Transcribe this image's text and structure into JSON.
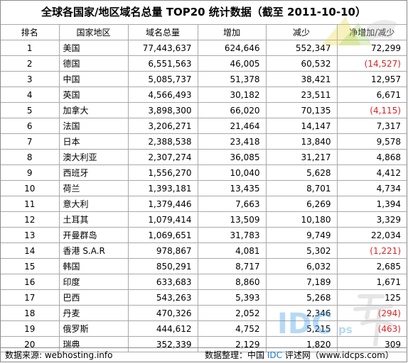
{
  "title": "全球各国家/地区域名总量 TOP20 统计数据（截至 2011-10-10）",
  "columns": [
    "排名",
    "国家地区",
    "域名总量",
    "增加",
    "减少",
    "净增加/减少"
  ],
  "rows": [
    {
      "rank": "1",
      "country": "美国",
      "total": "77,443,637",
      "increase": "624,646",
      "decrease": "552,347",
      "net": "72,299",
      "net_negative": false
    },
    {
      "rank": "2",
      "country": "德国",
      "total": "6,551,563",
      "increase": "46,005",
      "decrease": "60,532",
      "net": "(14,527)",
      "net_negative": true
    },
    {
      "rank": "3",
      "country": "中国",
      "total": "5,085,737",
      "increase": "51,378",
      "decrease": "38,421",
      "net": "12,957",
      "net_negative": false
    },
    {
      "rank": "4",
      "country": "英国",
      "total": "4,566,493",
      "increase": "30,182",
      "decrease": "23,511",
      "net": "6,671",
      "net_negative": false
    },
    {
      "rank": "5",
      "country": "加拿大",
      "total": "3,898,300",
      "increase": "66,020",
      "decrease": "70,135",
      "net": "(4,115)",
      "net_negative": true
    },
    {
      "rank": "6",
      "country": "法国",
      "total": "3,206,271",
      "increase": "21,464",
      "decrease": "14,147",
      "net": "7,317",
      "net_negative": false
    },
    {
      "rank": "7",
      "country": "日本",
      "total": "2,388,538",
      "increase": "23,418",
      "decrease": "13,840",
      "net": "9,578",
      "net_negative": false
    },
    {
      "rank": "8",
      "country": "澳大利亚",
      "total": "2,307,274",
      "increase": "36,085",
      "decrease": "31,217",
      "net": "4,868",
      "net_negative": false
    },
    {
      "rank": "9",
      "country": "西班牙",
      "total": "1,556,270",
      "increase": "10,040",
      "decrease": "5,628",
      "net": "4,412",
      "net_negative": false
    },
    {
      "rank": "10",
      "country": "荷兰",
      "total": "1,393,181",
      "increase": "13,435",
      "decrease": "8,701",
      "net": "4,734",
      "net_negative": false
    },
    {
      "rank": "11",
      "country": "意大利",
      "total": "1,379,446",
      "increase": "7,663",
      "decrease": "6,269",
      "net": "1,394",
      "net_negative": false
    },
    {
      "rank": "12",
      "country": "土耳其",
      "total": "1,079,414",
      "increase": "13,509",
      "decrease": "10,180",
      "net": "3,329",
      "net_negative": false
    },
    {
      "rank": "13",
      "country": "开曼群岛",
      "total": "1,069,651",
      "increase": "31,783",
      "decrease": "9,749",
      "net": "22,034",
      "net_negative": false
    },
    {
      "rank": "14",
      "country": "香港 S.A.R",
      "total": "978,867",
      "increase": "4,081",
      "decrease": "5,302",
      "net": "(1,221)",
      "net_negative": true
    },
    {
      "rank": "15",
      "country": "韩国",
      "total": "850,291",
      "increase": "8,717",
      "decrease": "6,032",
      "net": "2,685",
      "net_negative": false
    },
    {
      "rank": "16",
      "country": "印度",
      "total": "633,683",
      "increase": "8,860",
      "decrease": "7,189",
      "net": "1,671",
      "net_negative": false
    },
    {
      "rank": "17",
      "country": "巴西",
      "total": "543,263",
      "increase": "5,393",
      "decrease": "5,268",
      "net": "125",
      "net_negative": false
    },
    {
      "rank": "18",
      "country": "丹麦",
      "total": "470,326",
      "increase": "2,052",
      "decrease": "2,346",
      "net": "(294)",
      "net_negative": true
    },
    {
      "rank": "19",
      "country": "俄罗斯",
      "total": "444,612",
      "increase": "4,752",
      "decrease": "5,215",
      "net": "(463)",
      "net_negative": true
    },
    {
      "rank": "20",
      "country": "瑞典",
      "total": "352,339",
      "increase": "2,129",
      "decrease": "1,820",
      "net": "309",
      "net_negative": false
    }
  ],
  "footer": {
    "source_label": "数据来源: ",
    "source_value": "webhosting.info",
    "organizer_label": "数据整理：中国 ",
    "organizer_brand": "IDC",
    "organizer_rest": " 评述网（www.idcps.com）"
  },
  "watermark": {
    "text": "IDC",
    "suffix": "ps"
  },
  "colors": {
    "negative": "#e02020",
    "brand": "#1a78c8",
    "border": "#a9a9a9"
  }
}
